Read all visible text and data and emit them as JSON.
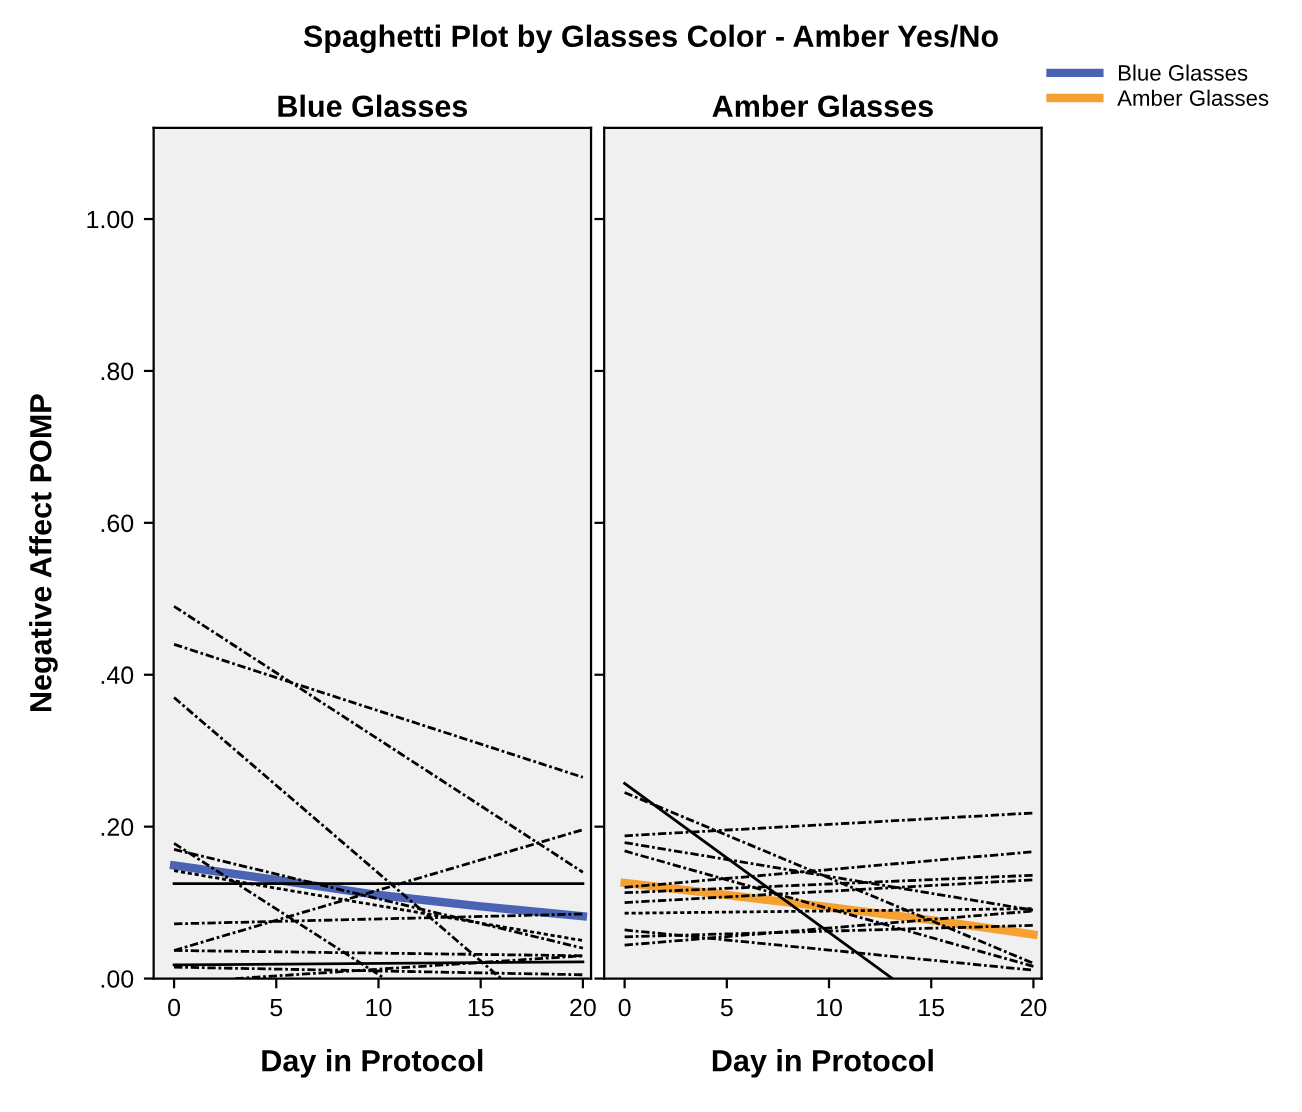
{
  "chart_data": [
    {
      "type": "line",
      "title": "Blue Glasses",
      "xlabel": "Day in Protocol",
      "ylabel": "Negative Affect POMP",
      "annotations": [
        "Spaghetti Plot by Glasses Color - Amber Yes/No"
      ],
      "xlim": [
        -1,
        20.4
      ],
      "ylim": [
        0,
        1.12
      ],
      "xticks": [
        0,
        5,
        10,
        15,
        20
      ],
      "yticks": [
        {
          "value": 0,
          "label": ".00"
        },
        {
          "value": 0.2,
          "label": ".20"
        },
        {
          "value": 0.4,
          "label": ".40"
        },
        {
          "value": 0.6,
          "label": ".60"
        },
        {
          "value": 0.8,
          "label": ".80"
        },
        {
          "value": 1.0,
          "label": "1.00"
        }
      ],
      "grid": false,
      "marker": "none",
      "legend": "top right",
      "series": [
        {
          "color": "#000000",
          "line_style": "dashed",
          "x": [
            0,
            20
          ],
          "values": [
            0.49,
            0.14
          ]
        },
        {
          "color": "#000000",
          "line_style": "dashed",
          "x": [
            0,
            20
          ],
          "values": [
            0.44,
            0.265
          ]
        },
        {
          "color": "#000000",
          "line_style": "dashed",
          "x": [
            0,
            16
          ],
          "values": [
            0.37,
            0
          ]
        },
        {
          "color": "#000000",
          "line_style": "dashed",
          "x": [
            0,
            10.3
          ],
          "values": [
            0.178,
            0
          ]
        },
        {
          "color": "#000000",
          "line_style": "dashed",
          "x": [
            0,
            20
          ],
          "values": [
            0.17,
            0.04
          ]
        },
        {
          "color": "#000000",
          "line_style": "solid",
          "x": [
            0,
            20
          ],
          "values": [
            0.125,
            0.125
          ]
        },
        {
          "color": "#000000",
          "line_style": "dashed",
          "x": [
            0,
            20
          ],
          "values": [
            0.072,
            0.085
          ]
        },
        {
          "color": "#000000",
          "line_style": "dashed",
          "x": [
            0,
            20
          ],
          "values": [
            0.037,
            0.196
          ]
        },
        {
          "color": "#000000",
          "line_style": "dashed",
          "x": [
            0,
            20
          ],
          "values": [
            0.037,
            0.03
          ]
        },
        {
          "color": "#000000",
          "line_style": "dotted",
          "x": [
            0,
            20
          ],
          "values": [
            0.142,
            0.05
          ]
        },
        {
          "color": "#000000",
          "line_style": "solid",
          "x": [
            0,
            20
          ],
          "values": [
            0.018,
            0.022
          ]
        },
        {
          "color": "#000000",
          "line_style": "dashed",
          "x": [
            0,
            20
          ],
          "values": [
            0.015,
            0.005
          ]
        },
        {
          "color": "#000000",
          "line_style": "dashed",
          "x": [
            3,
            20
          ],
          "values": [
            0,
            0.03
          ]
        },
        {
          "name": "Blue Glasses",
          "color": "#4a63b5",
          "line_style": "solid",
          "x": [
            0,
            5,
            10,
            15,
            20
          ],
          "values": [
            0.149,
            0.13,
            0.11,
            0.095,
            0.082
          ]
        }
      ]
    },
    {
      "type": "line",
      "title": "Amber Glasses",
      "xlabel": "Day in Protocol",
      "xlim": [
        -1,
        20.4
      ],
      "ylim": [
        0,
        1.12
      ],
      "xticks": [
        0,
        5,
        10,
        15,
        20
      ],
      "tick_labels": "x",
      "grid": false,
      "marker": "none",
      "legend": "top right",
      "series": [
        {
          "color": "#000000",
          "line_style": "solid",
          "x": [
            0,
            13.1
          ],
          "values": [
            0.257,
            0
          ]
        },
        {
          "color": "#000000",
          "line_style": "dashed",
          "x": [
            0,
            20
          ],
          "values": [
            0.245,
            0.02
          ]
        },
        {
          "color": "#000000",
          "line_style": "dashed",
          "x": [
            0,
            20
          ],
          "values": [
            0.188,
            0.218
          ]
        },
        {
          "color": "#000000",
          "line_style": "dashed",
          "x": [
            0,
            20
          ],
          "values": [
            0.179,
            0.09
          ]
        },
        {
          "color": "#000000",
          "line_style": "dashed",
          "x": [
            0,
            20
          ],
          "values": [
            0.168,
            0.016
          ]
        },
        {
          "color": "#000000",
          "line_style": "dashed",
          "x": [
            0,
            20
          ],
          "values": [
            0.12,
            0.167
          ]
        },
        {
          "color": "#000000",
          "line_style": "dashed",
          "x": [
            0,
            20
          ],
          "values": [
            0.113,
            0.136
          ]
        },
        {
          "color": "#000000",
          "line_style": "dashed",
          "x": [
            0,
            20
          ],
          "values": [
            0.1,
            0.13
          ]
        },
        {
          "color": "#000000",
          "line_style": "dotted",
          "x": [
            0,
            20
          ],
          "values": [
            0.086,
            0.092
          ]
        },
        {
          "color": "#000000",
          "line_style": "dashed",
          "x": [
            0,
            20
          ],
          "values": [
            0.064,
            0.011
          ]
        },
        {
          "color": "#000000",
          "line_style": "dashed",
          "x": [
            0,
            20
          ],
          "values": [
            0.044,
            0.089
          ]
        },
        {
          "color": "#000000",
          "line_style": "dashed",
          "x": [
            0,
            20
          ],
          "values": [
            0.055,
            0.07
          ]
        },
        {
          "name": "Amber Glasses",
          "color": "#f5a030",
          "line_style": "solid",
          "x": [
            0,
            5,
            10,
            15,
            20
          ],
          "values": [
            0.126,
            0.11,
            0.094,
            0.077,
            0.058
          ]
        }
      ]
    }
  ]
}
